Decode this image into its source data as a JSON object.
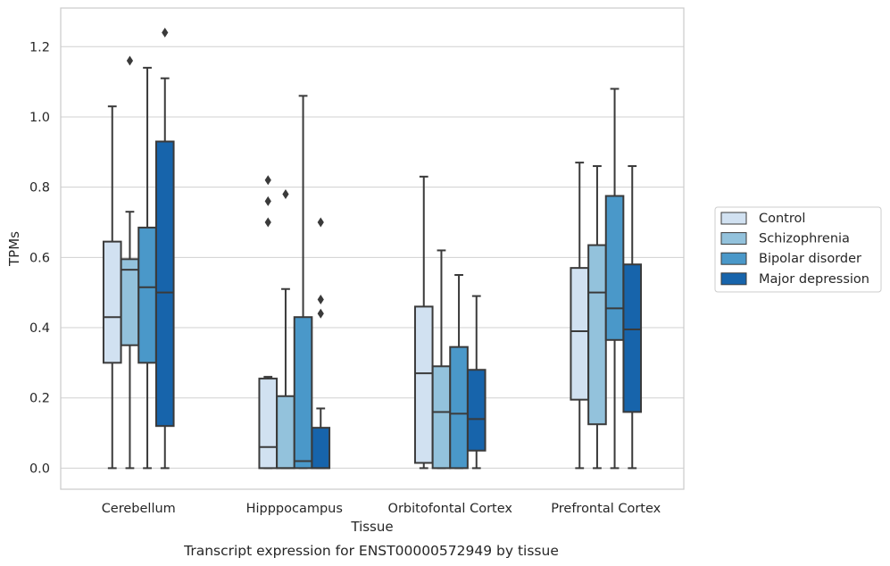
{
  "caption": "Transcript expression for ENST00000572949 by tissue",
  "chart_data": {
    "type": "box",
    "xlabel": "Tissue",
    "ylabel": "TPMs",
    "ylim": [
      -0.06,
      1.31
    ],
    "yticks": [
      0.0,
      0.2,
      0.4,
      0.6,
      0.8,
      1.0,
      1.2
    ],
    "ytick_labels": [
      "0.0",
      "0.2",
      "0.4",
      "0.6",
      "0.8",
      "1.0",
      "1.2"
    ],
    "grid": "horizontal",
    "legend_position": "right",
    "categories": [
      "Cerebellum",
      "Hipppocampus",
      "Orbitofontal Cortex",
      "Prefrontal Cortex"
    ],
    "series": [
      {
        "name": "Control",
        "color": "#d1e1f1",
        "boxes": [
          {
            "whislo": 0.0,
            "q1": 0.3,
            "med": 0.43,
            "q3": 0.645,
            "whishi": 1.03,
            "fliers": []
          },
          {
            "whislo": 0.0,
            "q1": 0.0,
            "med": 0.06,
            "q3": 0.255,
            "whishi": 0.26,
            "fliers": [
              0.7,
              0.76,
              0.82
            ]
          },
          {
            "whislo": 0.0,
            "q1": 0.015,
            "med": 0.27,
            "q3": 0.46,
            "whishi": 0.83,
            "fliers": []
          },
          {
            "whislo": 0.0,
            "q1": 0.195,
            "med": 0.39,
            "q3": 0.57,
            "whishi": 0.87,
            "fliers": []
          }
        ]
      },
      {
        "name": "Schizophrenia",
        "color": "#93c2dc",
        "boxes": [
          {
            "whislo": 0.0,
            "q1": 0.35,
            "med": 0.565,
            "q3": 0.595,
            "whishi": 0.73,
            "fliers": [
              1.16
            ]
          },
          {
            "whislo": 0.0,
            "q1": 0.0,
            "med": 0.0,
            "q3": 0.205,
            "whishi": 0.51,
            "fliers": [
              0.78
            ]
          },
          {
            "whislo": 0.0,
            "q1": 0.0,
            "med": 0.16,
            "q3": 0.29,
            "whishi": 0.62,
            "fliers": []
          },
          {
            "whislo": 0.0,
            "q1": 0.125,
            "med": 0.5,
            "q3": 0.635,
            "whishi": 0.86,
            "fliers": []
          }
        ]
      },
      {
        "name": "Bipolar disorder",
        "color": "#4a98c9",
        "boxes": [
          {
            "whislo": 0.0,
            "q1": 0.3,
            "med": 0.515,
            "q3": 0.685,
            "whishi": 1.14,
            "fliers": []
          },
          {
            "whislo": 0.0,
            "q1": 0.0,
            "med": 0.02,
            "q3": 0.43,
            "whishi": 1.06,
            "fliers": []
          },
          {
            "whislo": 0.0,
            "q1": 0.0,
            "med": 0.155,
            "q3": 0.345,
            "whishi": 0.55,
            "fliers": []
          },
          {
            "whislo": 0.0,
            "q1": 0.365,
            "med": 0.455,
            "q3": 0.775,
            "whishi": 1.08,
            "fliers": []
          }
        ]
      },
      {
        "name": "Major depression",
        "color": "#1764ab",
        "boxes": [
          {
            "whislo": 0.0,
            "q1": 0.12,
            "med": 0.5,
            "q3": 0.93,
            "whishi": 1.11,
            "fliers": [
              1.24
            ]
          },
          {
            "whislo": 0.0,
            "q1": 0.0,
            "med": 0.0,
            "q3": 0.115,
            "whishi": 0.17,
            "fliers": [
              0.44,
              0.48,
              0.7
            ]
          },
          {
            "whislo": 0.0,
            "q1": 0.05,
            "med": 0.14,
            "q3": 0.28,
            "whishi": 0.49,
            "fliers": []
          },
          {
            "whislo": 0.0,
            "q1": 0.16,
            "med": 0.395,
            "q3": 0.58,
            "whishi": 0.86,
            "fliers": []
          }
        ]
      }
    ]
  }
}
